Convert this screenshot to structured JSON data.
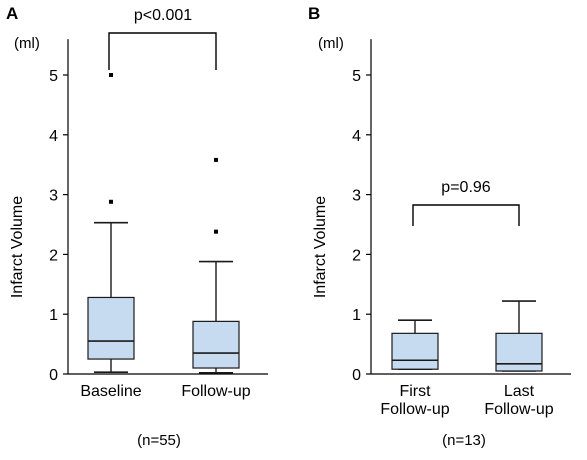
{
  "chart_data": [
    {
      "type": "box",
      "panel": "A",
      "unit": "(ml)",
      "ylabel": "Infarct Volume",
      "ylim": [
        0,
        5.5
      ],
      "yticks": [
        "0",
        "1",
        "2",
        "3",
        "4",
        "5"
      ],
      "categories": [
        [
          "Baseline"
        ],
        [
          "Follow-up"
        ]
      ],
      "boxes": [
        {
          "whisker_low": 0.03,
          "q1": 0.25,
          "median": 0.55,
          "q3": 1.28,
          "whisker_high": 2.53,
          "outliers": [
            2.88,
            5.0
          ]
        },
        {
          "whisker_low": 0.02,
          "q1": 0.1,
          "median": 0.35,
          "q3": 0.88,
          "whisker_high": 1.88,
          "outliers": [
            2.38,
            3.58
          ]
        }
      ],
      "comparison": {
        "label": "p<0.001",
        "from": 0,
        "to": 1
      },
      "n_label": "(n=55)",
      "box_fill": "#c6daf0",
      "box_stroke": "#1a1a1a"
    },
    {
      "type": "box",
      "panel": "B",
      "unit": "(ml)",
      "ylabel": "Infarct Volume",
      "ylim": [
        0,
        5.5
      ],
      "yticks": [
        "0",
        "1",
        "2",
        "3",
        "4",
        "5"
      ],
      "categories": [
        [
          "First",
          "Follow-up"
        ],
        [
          "Last",
          "Follow-up"
        ]
      ],
      "boxes": [
        {
          "whisker_low": 0.08,
          "q1": 0.08,
          "median": 0.23,
          "q3": 0.68,
          "whisker_high": 0.9,
          "outliers": []
        },
        {
          "whisker_low": 0.05,
          "q1": 0.05,
          "median": 0.17,
          "q3": 0.68,
          "whisker_high": 1.22,
          "outliers": []
        }
      ],
      "comparison": {
        "label": "p=0.96",
        "from": 0,
        "to": 1
      },
      "n_label": "(n=13)",
      "box_fill": "#c6daf0",
      "box_stroke": "#1a1a1a"
    }
  ]
}
